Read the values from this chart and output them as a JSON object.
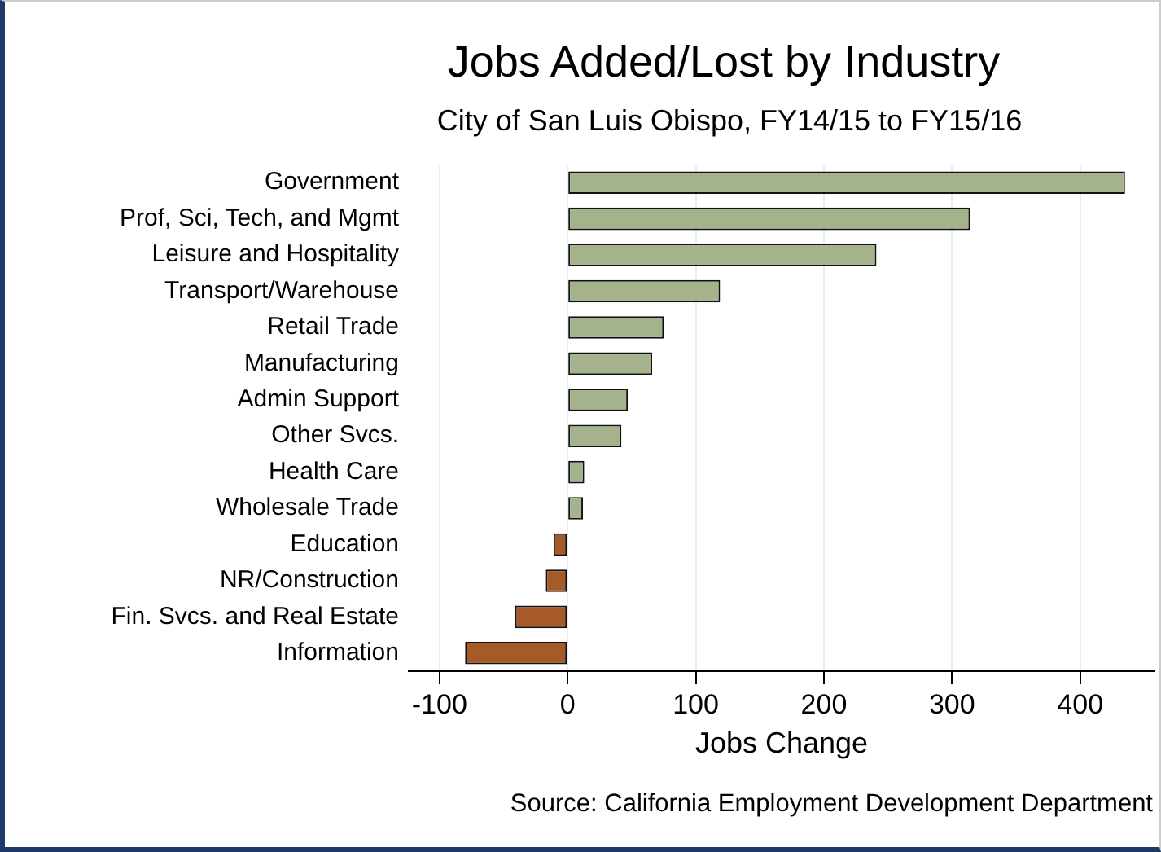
{
  "chart_data": {
    "type": "bar",
    "orientation": "horizontal",
    "title": "Jobs Added/Lost by Industry",
    "subtitle": "City of San Luis Obispo, FY14/15 to FY15/16",
    "xlabel": "Jobs Change",
    "categories": [
      "Government",
      "Prof, Sci, Tech, and Mgmt",
      "Leisure and Hospitality",
      "Transport/Warehouse",
      "Retail Trade",
      "Manufacturing",
      "Admin Support",
      "Other Svcs.",
      "Health Care",
      "Wholesale Trade",
      "Education",
      "NR/Construction",
      "Fin. Svcs. and Real Estate",
      "Information"
    ],
    "values": [
      435,
      314,
      241,
      119,
      75,
      66,
      47,
      42,
      13,
      12,
      -11,
      -17,
      -41,
      -80
    ],
    "colors": [
      "#a4b38c",
      "#a4b38c",
      "#a4b38c",
      "#a4b38c",
      "#a4b38c",
      "#a4b38c",
      "#a4b38c",
      "#a4b38c",
      "#a4b38c",
      "#a4b38c",
      "#a65a28",
      "#a65a28",
      "#a65a28",
      "#a65a28"
    ],
    "xlim": [
      -124,
      458
    ],
    "xticks": [
      -100,
      0,
      100,
      200,
      300,
      400
    ],
    "grid": "x",
    "annotations": [
      "Source: California Employment Development Department"
    ]
  }
}
